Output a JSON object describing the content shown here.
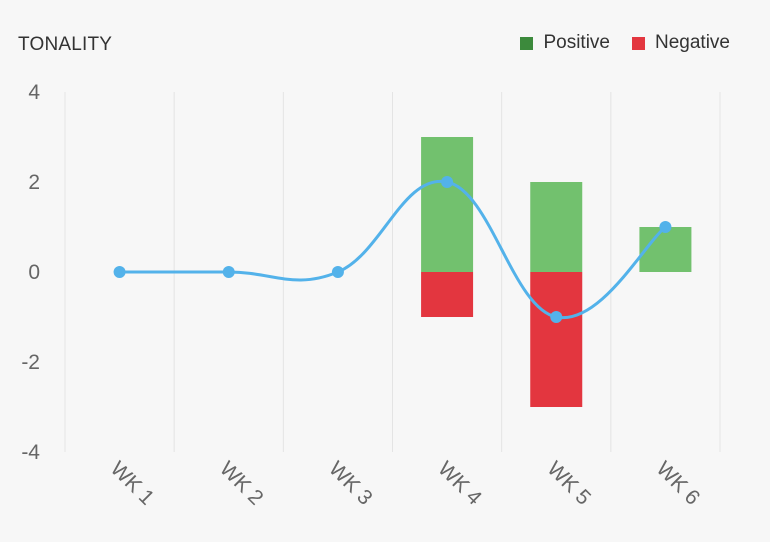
{
  "chart_data": {
    "type": "bar",
    "title": "TONALITY",
    "categories": [
      "WK 1",
      "WK 2",
      "WK 3",
      "WK 4",
      "WK 5",
      "WK 6"
    ],
    "series": [
      {
        "name": "Positive",
        "kind": "bar",
        "values": [
          0,
          0,
          0,
          3,
          2,
          1
        ],
        "color": "#72c16e"
      },
      {
        "name": "Negative",
        "kind": "bar",
        "values": [
          0,
          0,
          0,
          -1,
          -3,
          0
        ],
        "color": "#e3363f"
      },
      {
        "kind": "line",
        "smooth": true,
        "values": [
          0,
          0,
          0,
          2,
          -1,
          1
        ],
        "color": "#53b2ea"
      }
    ],
    "yticks": [
      "4",
      "2",
      "0",
      "-2",
      "-4"
    ],
    "ylim": [
      -4,
      4
    ],
    "grid": "vertical",
    "legend_position": "top-right",
    "legend_swatch_colors": {
      "Positive": "#3c8a3c",
      "Negative": "#e3363f"
    }
  }
}
